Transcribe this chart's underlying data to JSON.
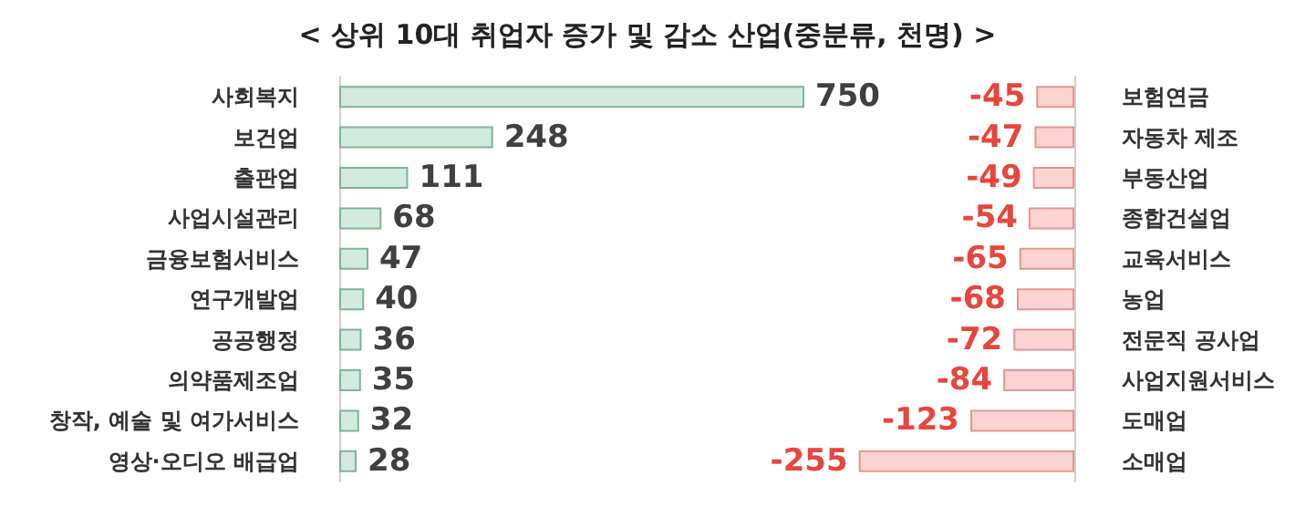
{
  "chart_data": [
    {
      "type": "bar",
      "title": "< 상위 10대 취업자 증가 및 감소 산업(중분류, 천명) >",
      "orientation": "horizontal",
      "categories": [
        "사회복지",
        "보건업",
        "출판업",
        "사업시설관리",
        "금융보험서비스",
        "연구개발업",
        "공공행정",
        "의약품제조업",
        "창작, 예술 및 여가서비스",
        "영상·오디오 배급업"
      ],
      "series": [
        {
          "color": "#d2eadf",
          "values": [
            750,
            248,
            111,
            68,
            47,
            40,
            36,
            35,
            32,
            28
          ]
        }
      ],
      "data_labels": true
    },
    {
      "type": "bar",
      "orientation": "horizontal",
      "categories": [
        "보험연금",
        "자동차 제조",
        "부동산업",
        "종합건설업",
        "교육서비스",
        "농업",
        "전문직 공사업",
        "사업지원서비스",
        "도매업",
        "소매업"
      ],
      "series": [
        {
          "color": "#fbd3d0",
          "values": [
            -45,
            -47,
            -49,
            -54,
            -65,
            -68,
            -72,
            -84,
            -123,
            -255
          ]
        }
      ],
      "data_labels": true
    }
  ]
}
